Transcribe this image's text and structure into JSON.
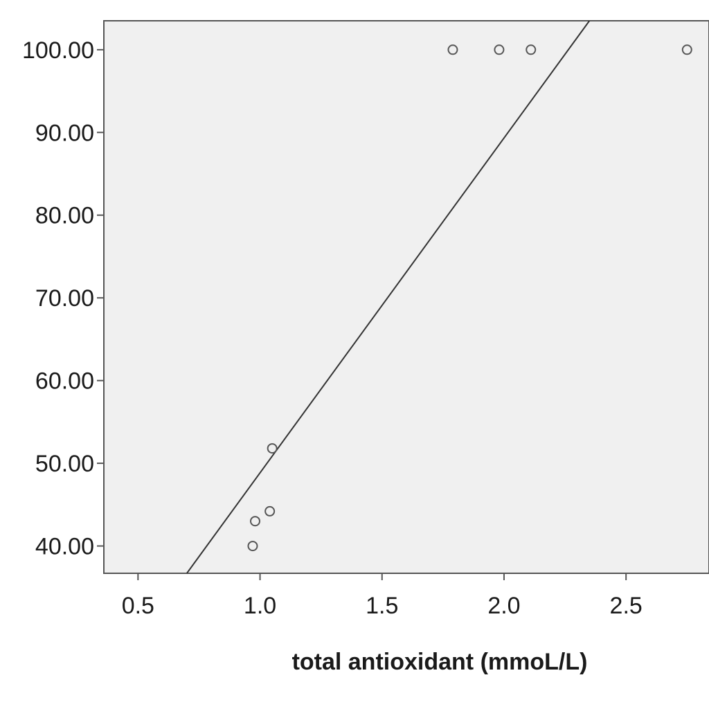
{
  "chart_data": {
    "type": "scatter",
    "title": "",
    "xlabel": "total antioxidant (mmoL/L)",
    "ylabel": "",
    "xlim": [
      0.36,
      2.84
    ],
    "ylim": [
      36.7,
      103.5
    ],
    "x_ticks": [
      "0.5",
      "1.0",
      "1.5",
      "2.0",
      "2.5"
    ],
    "y_ticks": [
      "40.00",
      "50.00",
      "60.00",
      "70.00",
      "80.00",
      "90.00",
      "100.00"
    ],
    "points": [
      {
        "x": 0.97,
        "y": 40.0
      },
      {
        "x": 0.98,
        "y": 43.0
      },
      {
        "x": 1.04,
        "y": 44.2
      },
      {
        "x": 1.05,
        "y": 51.8
      },
      {
        "x": 1.79,
        "y": 100.0
      },
      {
        "x": 1.98,
        "y": 100.0
      },
      {
        "x": 2.11,
        "y": 100.0
      },
      {
        "x": 2.75,
        "y": 100.0
      }
    ],
    "fit_line": {
      "x": [
        0.7,
        2.35
      ],
      "y": [
        36.7,
        103.5
      ]
    },
    "grid": false,
    "colors": {
      "plot_background": "#f0f0f0",
      "marker": "#555555",
      "line": "#333333"
    }
  }
}
